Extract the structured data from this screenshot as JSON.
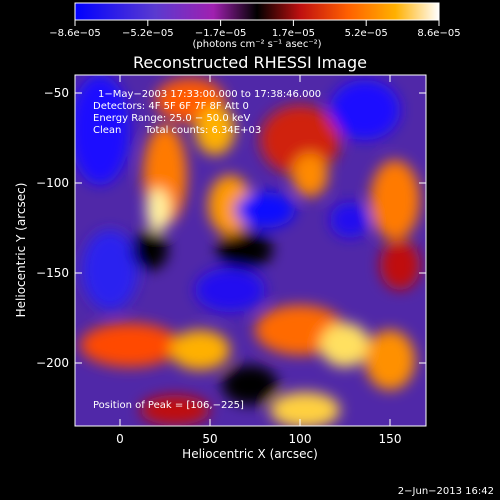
{
  "chart_data": {
    "type": "heatmap",
    "title": "Reconstructed RHESSI Image",
    "xlabel": "Heliocentric X (arcsec)",
    "ylabel": "Heliocentric Y (arcsec)",
    "xlim": [
      -25,
      170
    ],
    "ylim": [
      -235,
      -40
    ],
    "xticks": [
      0,
      50,
      100,
      150
    ],
    "xtick_labels": [
      "0",
      "50",
      "100",
      "150"
    ],
    "yticks": [
      -50,
      -100,
      -150,
      -200
    ],
    "ytick_labels": [
      "−50",
      "−100",
      "−150",
      "−200"
    ],
    "colorbar": {
      "min": -8.6e-05,
      "max": 8.6e-05,
      "tick_labels": [
        "−8.6e−05",
        "−5.2e−05",
        "−1.7e−05",
        "1.7e−05",
        "5.2e−05",
        "8.6e−05"
      ],
      "unit_label": "(photons cm⁻² s⁻¹ asec⁻²)",
      "colors": [
        "#0000ff",
        "#5a3ad0",
        "#a020b0",
        "#000000",
        "#c01010",
        "#ff6000",
        "#ffb000",
        "#ffffff"
      ]
    },
    "annotations": {
      "time_range": "1−May−2003 17:33:00.000 to 17:38:46.000",
      "detectors": "Detectors: 4F 5F 6F 7F 8F  Att 0",
      "energy_range": "Energy Range: 25.0 − 50.0 keV",
      "method": "Clean",
      "total_counts": "Total counts: 6.34E+03",
      "peak": "Position of Peak = [106,−225]"
    },
    "peak": {
      "x": 106,
      "y": -225
    },
    "grid": false,
    "legend": "colorbar-top"
  },
  "footer": {
    "timestamp": "2−Jun−2013 16:42"
  }
}
